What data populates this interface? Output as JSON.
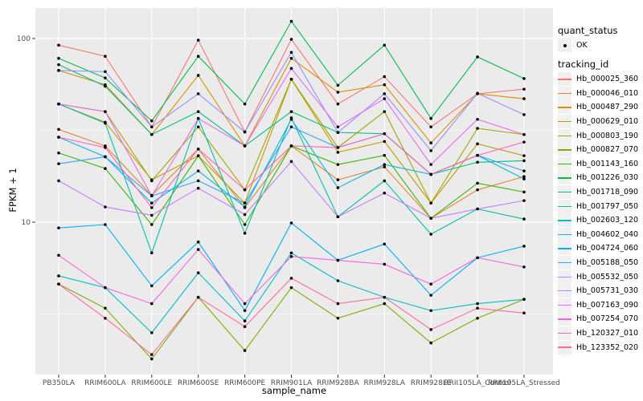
{
  "axes": {
    "y_title": "FPKM + 1",
    "x_title": "sample_name",
    "y_scale": "log10",
    "y_ticks": [
      {
        "value": 100,
        "label": "100"
      },
      {
        "value": 10,
        "label": "10"
      }
    ]
  },
  "legend": {
    "quant_status": {
      "title": "quant_status",
      "items": [
        "OK"
      ]
    },
    "tracking": {
      "title": "tracking_id"
    }
  },
  "chart_data": {
    "type": "line",
    "title": "",
    "xlabel": "sample_name",
    "ylabel": "FPKM + 1",
    "y_scale": "log10",
    "ylim": [
      1.7,
      140
    ],
    "grid": "white on gray panel, major at 10 and 100, minor at 3.16 and 31.6",
    "legend_position": "right",
    "point_marker": "small black dot (quant_status = OK)",
    "x_categories": [
      "PB350LA",
      "RRIM600LA",
      "RRIM600LE",
      "RRIM600SE",
      "RRIM600PE",
      "RRIM901LA",
      "RRIM928BA",
      "RRIM928LA",
      "RRIM928LE",
      "RRII105LA_Control",
      "RRII105LA_Stressed"
    ],
    "series": [
      {
        "name": "Hb_000025_360",
        "color": "#F8766D",
        "values": [
          92,
          80,
          33,
          98,
          31,
          99,
          44,
          62,
          33,
          50,
          53
        ]
      },
      {
        "name": "Hb_000046_010",
        "color": "#EA8331",
        "values": [
          32,
          26,
          14,
          25,
          12,
          26,
          17,
          20,
          10.5,
          15,
          17.7
        ]
      },
      {
        "name": "Hb_000487_290",
        "color": "#D89000",
        "values": [
          67,
          56,
          30,
          63,
          26,
          78,
          51,
          56,
          27,
          50,
          47
        ]
      },
      {
        "name": "Hb_000629_010",
        "color": "#C09B00",
        "values": [
          44,
          35,
          17,
          23,
          12.7,
          60,
          24,
          27.5,
          12.7,
          26.7,
          23
        ]
      },
      {
        "name": "Hb_000803_190",
        "color": "#A3A500",
        "values": [
          44,
          40,
          16.8,
          33,
          15,
          60,
          25.5,
          40,
          12.7,
          32.4,
          30
        ]
      },
      {
        "name": "Hb_000827_070",
        "color": "#7CAE00",
        "values": [
          4.6,
          3.4,
          1.8,
          3.9,
          2.0,
          4.4,
          3.0,
          3.6,
          2.2,
          3.0,
          3.8
        ]
      },
      {
        "name": "Hb_001143_160",
        "color": "#39B600",
        "values": [
          23.8,
          19.6,
          9.7,
          23,
          9.7,
          26,
          20.6,
          23.1,
          10.5,
          16.3,
          14.6
        ]
      },
      {
        "name": "Hb_001226_030",
        "color": "#00BB4E",
        "values": [
          78,
          61,
          35.6,
          80,
          44,
          124,
          55.6,
          92,
          36.7,
          79.4,
          60.5
        ]
      },
      {
        "name": "Hb_001718_090",
        "color": "#00BF7D",
        "values": [
          72,
          55,
          30,
          40,
          26,
          40,
          30.8,
          30.3,
          18.2,
          21.2,
          21.6
        ]
      },
      {
        "name": "Hb_001797_050",
        "color": "#00C1A3",
        "values": [
          44,
          34.6,
          6.8,
          36.7,
          8.7,
          37,
          10.7,
          16.8,
          8.6,
          11.8,
          10.4
        ]
      },
      {
        "name": "Hb_002603_120",
        "color": "#00BFC4",
        "values": [
          5.1,
          4.4,
          2.5,
          5.3,
          2.9,
          6.8,
          4.8,
          3.9,
          3.3,
          3.6,
          3.8
        ]
      },
      {
        "name": "Hb_004602_040",
        "color": "#00BAE0",
        "values": [
          29,
          22.7,
          12.7,
          19,
          12.1,
          36.3,
          15.4,
          20.6,
          18.2,
          23.1,
          17.2
        ]
      },
      {
        "name": "Hb_004724_060",
        "color": "#00B0F6",
        "values": [
          9.3,
          9.7,
          4.5,
          7.8,
          3.3,
          9.9,
          6.2,
          7.6,
          4.0,
          6.4,
          7.4
        ]
      },
      {
        "name": "Hb_005188_050",
        "color": "#35A2FF",
        "values": [
          20.8,
          22.7,
          13.9,
          16.8,
          12.7,
          33,
          25.5,
          30.3,
          18.2,
          23.1,
          19
        ]
      },
      {
        "name": "Hb_005532_050",
        "color": "#9590FF",
        "values": [
          67,
          66,
          33,
          50,
          31,
          84,
          30.8,
          50,
          24.5,
          50.3,
          38.5
        ]
      },
      {
        "name": "Hb_005731_030",
        "color": "#C77CFF",
        "values": [
          16.8,
          12.1,
          10.9,
          15.3,
          11,
          21.4,
          10.7,
          14.4,
          10.5,
          11.8,
          13.1
        ]
      },
      {
        "name": "Hb_007163_090",
        "color": "#E76BF3",
        "values": [
          44,
          40,
          13.9,
          36.7,
          26,
          68.7,
          33,
          47,
          20.6,
          36.3,
          30
        ]
      },
      {
        "name": "Hb_007254_070",
        "color": "#FA62DB",
        "values": [
          6.6,
          4.4,
          3.6,
          7.1,
          3.6,
          6.5,
          6.2,
          5.9,
          4.6,
          6.4,
          5.7
        ]
      },
      {
        "name": "Hb_120327_010",
        "color": "#FF62BC",
        "values": [
          29,
          25.5,
          12,
          25,
          15,
          26,
          25.5,
          30.3,
          18.2,
          23.1,
          27.3
        ]
      },
      {
        "name": "Hb_123352_020",
        "color": "#FF6A98",
        "values": [
          4.6,
          3.0,
          1.9,
          3.9,
          2.7,
          4.95,
          3.6,
          3.9,
          2.6,
          3.4,
          3.2
        ]
      }
    ]
  },
  "colors": {
    "panel_bg": "#EBEBEB",
    "grid": "#FFFFFF",
    "tick_text": "#4d4d4d",
    "point": "#000000",
    "legend_key_bg": "#F0F0F0"
  }
}
